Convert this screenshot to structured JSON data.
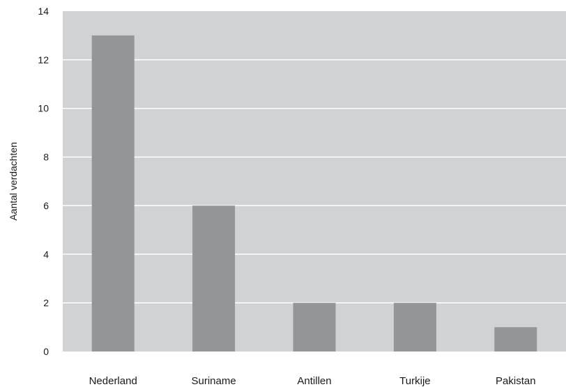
{
  "chart_data": {
    "type": "bar",
    "title": "",
    "xlabel": "",
    "ylabel": "Aantal verdachten",
    "categories": [
      "Nederland",
      "Suriname",
      "Antillen",
      "Turkije",
      "Pakistan"
    ],
    "values": [
      13,
      6,
      2,
      2,
      1
    ],
    "ylim": [
      0,
      14
    ],
    "yticks": [
      "0",
      "2",
      "4",
      "6",
      "8",
      "10",
      "12",
      "14"
    ],
    "grid": true,
    "legend": "none",
    "colors": {
      "plot_background": "#d1d2d4",
      "bar": "#939598",
      "grid": "#ffffff"
    }
  }
}
